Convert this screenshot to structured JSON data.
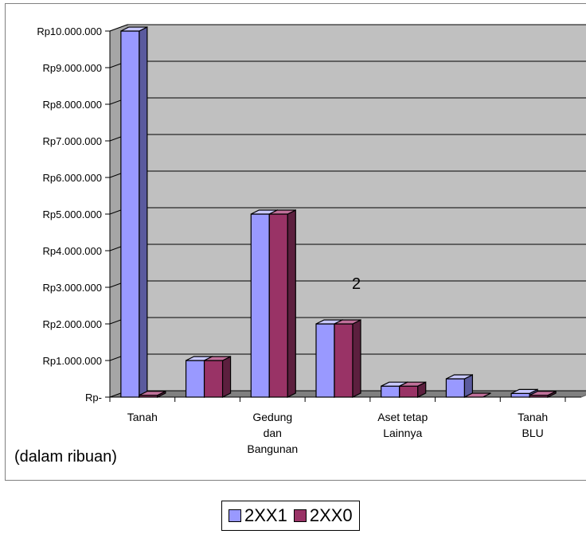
{
  "chart_data": {
    "type": "bar",
    "categories": [
      "Tanah",
      "",
      "Gedung dan Bangunan",
      "",
      "Aset tetap Lainnya",
      "",
      "Tanah BLU"
    ],
    "category_lines": [
      [
        "Tanah"
      ],
      [],
      [
        "Gedung",
        "dan",
        "Bangunan"
      ],
      [],
      [
        "Aset tetap",
        "Lainnya"
      ],
      [],
      [
        "Tanah",
        "BLU"
      ]
    ],
    "series": [
      {
        "name": "2XX1",
        "values": [
          10000000,
          1000000,
          5000000,
          2000000,
          300000,
          500000,
          100000
        ]
      },
      {
        "name": "2XX0",
        "values": [
          50000,
          1000000,
          5000000,
          2000000,
          300000,
          0,
          50000
        ]
      }
    ],
    "ylim": [
      0,
      10000000
    ],
    "yticks": [
      0,
      1000000,
      2000000,
      3000000,
      4000000,
      5000000,
      6000000,
      7000000,
      8000000,
      9000000,
      10000000
    ],
    "ytick_labels": [
      "Rp-",
      "Rp1.000.000",
      "Rp2.000.000",
      "Rp3.000.000",
      "Rp4.000.000",
      "Rp5.000.000",
      "Rp6.000.000",
      "Rp7.000.000",
      "Rp8.000.000",
      "Rp9.000.000",
      "Rp10.000.000"
    ],
    "grid": true,
    "legend_position": "bottom-center",
    "unit_note": "(dalam ribuan)",
    "annotation": "2",
    "colors": {
      "series1_front": "#9999ff",
      "series1_side": "#5a5a9e",
      "series1_top": "#c8c8ff",
      "series2_front": "#993366",
      "series2_side": "#5c1f3e",
      "series2_top": "#c0709a",
      "plot_bg": "#c0c0c0",
      "floor": "#808080"
    }
  }
}
